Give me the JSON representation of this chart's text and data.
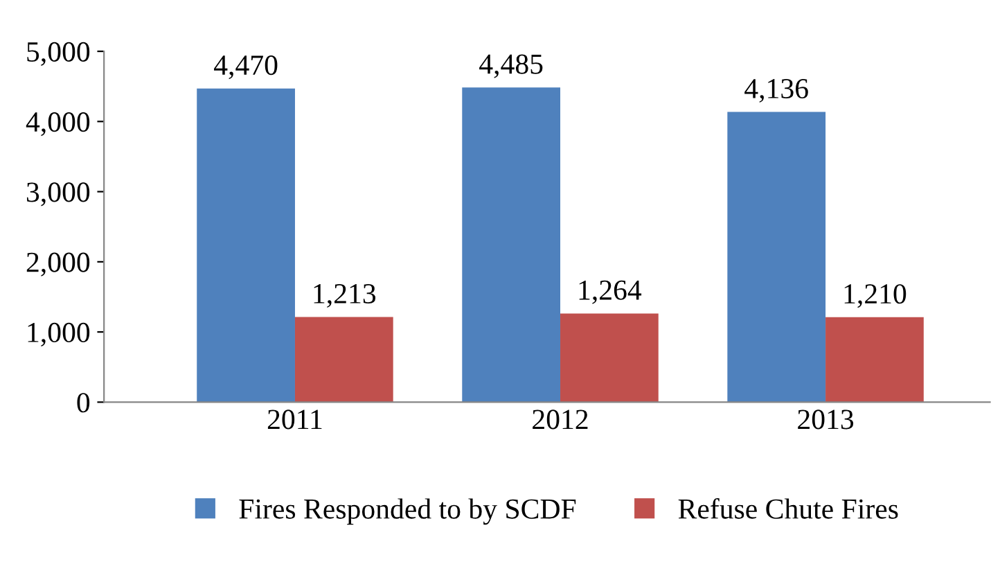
{
  "chart_data": {
    "type": "bar",
    "categories": [
      "2011",
      "2012",
      "2013"
    ],
    "series": [
      {
        "name": "Fires Responded to by SCDF",
        "color": "#4f81bd",
        "values": [
          4470,
          4485,
          4136
        ],
        "value_labels": [
          "4,470",
          "4,485",
          "4,136"
        ]
      },
      {
        "name": "Refuse Chute Fires",
        "color": "#c0504d",
        "values": [
          1213,
          1264,
          1210
        ],
        "value_labels": [
          "1,213",
          "1,264",
          "1,210"
        ]
      }
    ],
    "ylim": [
      0,
      5000
    ],
    "yticks": [
      0,
      {
        "value": 1000,
        "label": "1,000"
      },
      {
        "value": 2000,
        "label": "2,000"
      },
      {
        "value": 3000,
        "label": "3,000"
      },
      {
        "value": 4000,
        "label": "4,000"
      },
      {
        "value": 5000,
        "label": "5,000"
      }
    ],
    "grid": false,
    "legend": "bottom"
  }
}
